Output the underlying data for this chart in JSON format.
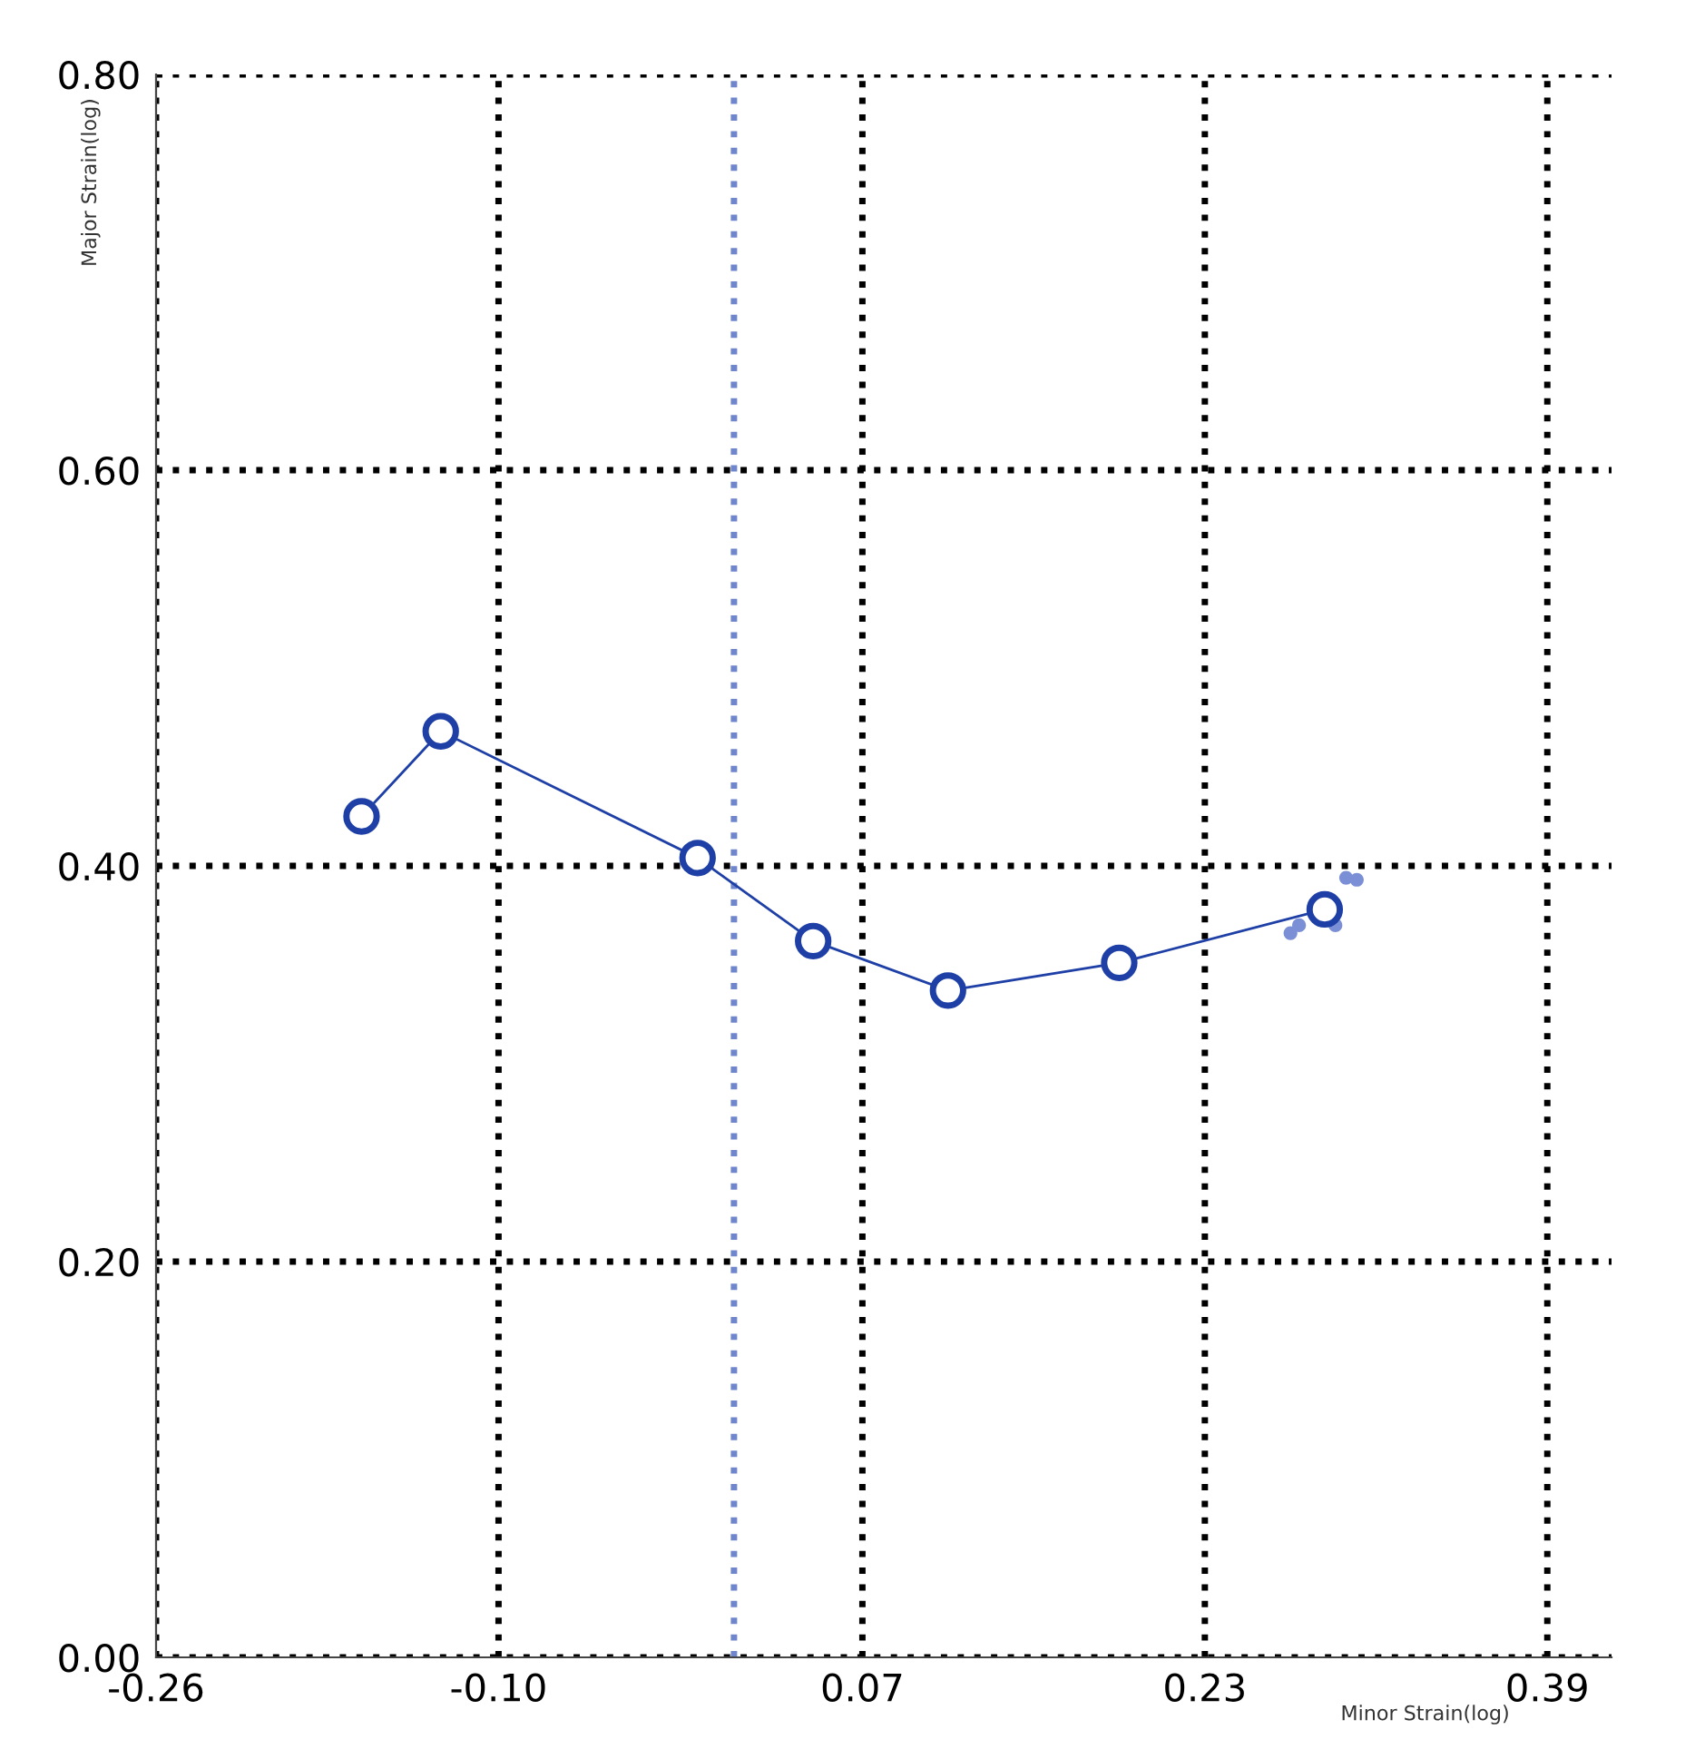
{
  "chart_data": {
    "type": "line",
    "xlabel": "Minor Strain(log)",
    "ylabel": "Major Strain(log)",
    "xlim": [
      -0.26,
      0.42
    ],
    "ylim": [
      0,
      0.8
    ],
    "xticks": [
      {
        "value": -0.26,
        "label": "-0.26"
      },
      {
        "value": -0.1,
        "label": "-0.10"
      },
      {
        "value": 0.07,
        "label": "0.07"
      },
      {
        "value": 0.23,
        "label": "0.23"
      },
      {
        "value": 0.39,
        "label": "0.39"
      }
    ],
    "yticks": [
      {
        "value": 0,
        "label": "0.00"
      },
      {
        "value": 0.2,
        "label": "0.20"
      },
      {
        "value": 0.4,
        "label": "0.40"
      },
      {
        "value": 0.6,
        "label": "0.60"
      },
      {
        "value": 0.8,
        "label": "0.80"
      }
    ],
    "grid": true,
    "line_style": "solid",
    "ref_lines": [
      {
        "axis": "x",
        "value": 0.01,
        "color": "#6f86cc",
        "line_style": "dotted"
      }
    ],
    "series": [
      {
        "marker": "circle",
        "color": "#1e3fa6",
        "x": [
          -0.164,
          -0.127,
          -0.007,
          0.047,
          0.11,
          0.19,
          0.286
        ],
        "values": [
          0.425,
          0.468,
          0.404,
          0.362,
          0.337,
          0.351,
          0.378
        ]
      },
      {
        "type": "scatter",
        "marker": "circle",
        "color": "#7b8fd6",
        "x": [
          0.27,
          0.274,
          0.291,
          0.296,
          0.301
        ],
        "values": [
          0.366,
          0.37,
          0.37,
          0.394,
          0.393
        ]
      }
    ]
  }
}
